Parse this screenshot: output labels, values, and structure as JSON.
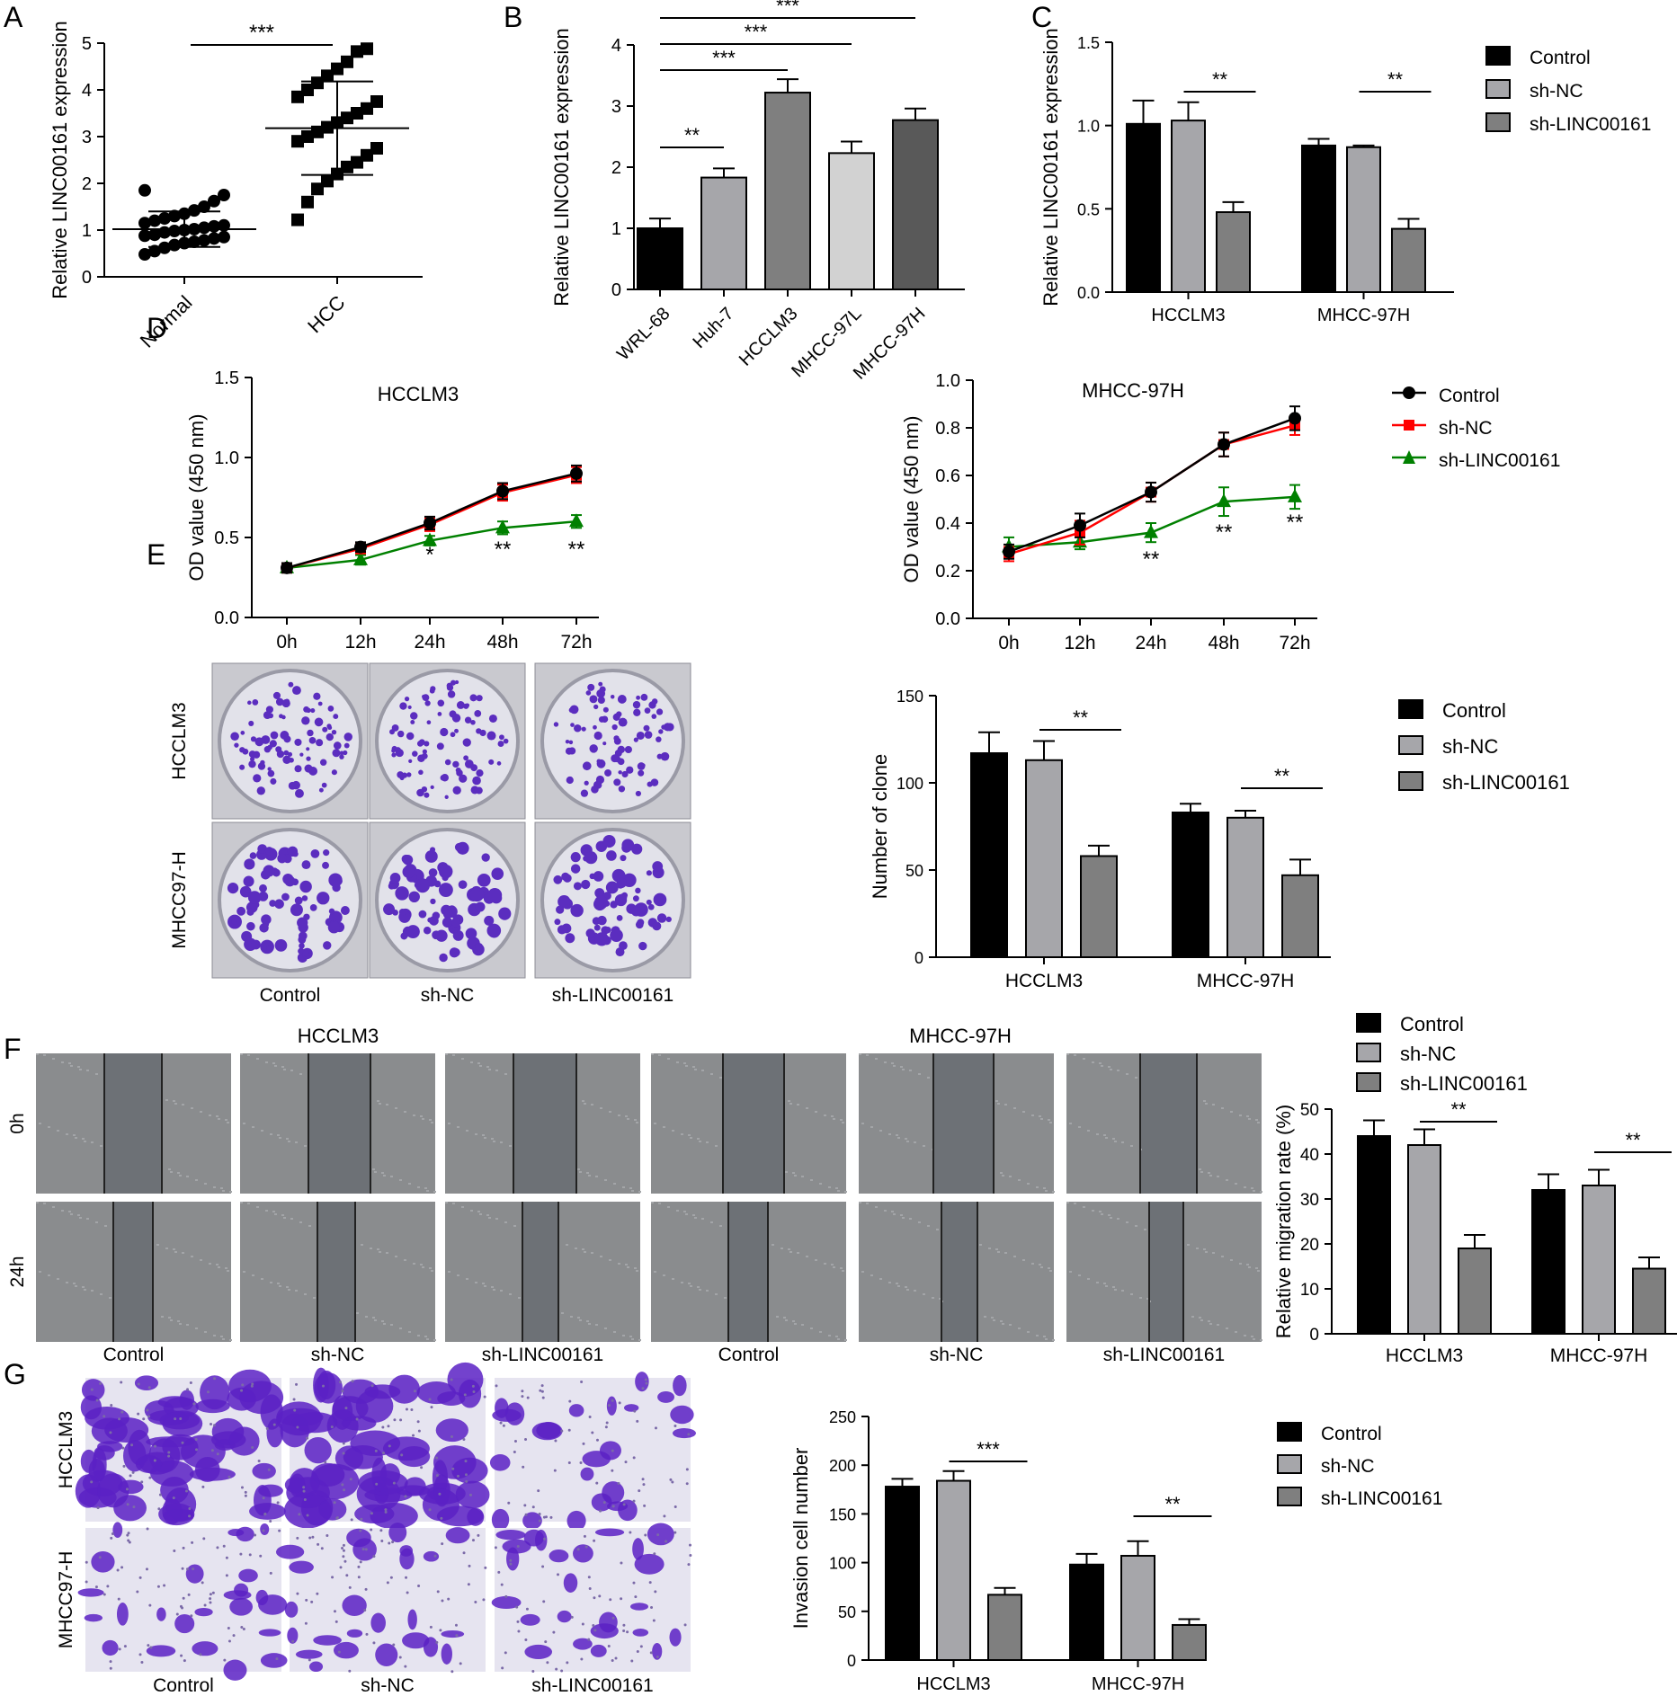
{
  "panel_labels": [
    "A",
    "B",
    "C",
    "D",
    "E",
    "F",
    "G"
  ],
  "colors": {
    "black": "#000000",
    "light_gray": "#a6a6aa",
    "mid_gray": "#7f7f7f",
    "lighter_gray": "#d2d2d2",
    "dark_gray": "#595959",
    "red": "#ff0000",
    "green": "#008000",
    "crystal_violet": "#5b2dbf"
  },
  "legend_groups": [
    "Control",
    "sh-NC",
    "sh-LINC00161"
  ],
  "chart_data": [
    {
      "id": "A",
      "type": "scatter",
      "categories": [
        "Normal",
        "HCC"
      ],
      "ylabel": "Relative LINC00161 expression",
      "ylim": [
        0,
        5
      ],
      "yticks": [
        "0",
        "1",
        "2",
        "3",
        "4",
        "5"
      ],
      "series": [
        {
          "name": "Normal",
          "marker": "circle",
          "mean": 1.02,
          "sd": 0.38,
          "values": [
            0.48,
            0.55,
            0.62,
            0.68,
            0.72,
            0.75,
            0.78,
            0.82,
            0.85,
            0.88,
            0.9,
            0.95,
            0.98,
            1.0,
            1.02,
            1.05,
            1.08,
            1.1,
            1.15,
            1.2,
            1.25,
            1.3,
            1.35,
            1.42,
            1.5,
            1.62,
            1.75,
            1.85
          ]
        },
        {
          "name": "HCC",
          "marker": "square",
          "mean": 3.18,
          "sd": 1.0,
          "values": [
            1.22,
            1.6,
            1.88,
            2.05,
            2.2,
            2.35,
            2.45,
            2.6,
            2.75,
            2.9,
            3.0,
            3.1,
            3.2,
            3.3,
            3.4,
            3.5,
            3.6,
            3.75,
            3.85,
            4.0,
            4.15,
            4.3,
            4.45,
            4.6,
            4.82,
            4.88
          ]
        }
      ],
      "significance": [
        {
          "between": [
            "Normal",
            "HCC"
          ],
          "label": "***"
        }
      ]
    },
    {
      "id": "B",
      "type": "bar",
      "categories": [
        "WRL-68",
        "Huh-7",
        "HCCLM3",
        "MHCC-97L",
        "MHCC-97H"
      ],
      "values": [
        1.0,
        1.83,
        3.22,
        2.23,
        2.77
      ],
      "errors": [
        0.16,
        0.15,
        0.22,
        0.19,
        0.19
      ],
      "ylabel": "Relative LINC00161 expression",
      "ylim": [
        0,
        4
      ],
      "yticks": [
        "0",
        "1",
        "2",
        "3",
        "4"
      ],
      "significance": [
        {
          "between": [
            "WRL-68",
            "Huh-7"
          ],
          "label": "**"
        },
        {
          "between": [
            "WRL-68",
            "HCCLM3"
          ],
          "label": "***"
        },
        {
          "between": [
            "WRL-68",
            "MHCC-97L"
          ],
          "label": "***"
        },
        {
          "between": [
            "WRL-68",
            "MHCC-97H"
          ],
          "label": "***"
        }
      ]
    },
    {
      "id": "C",
      "type": "bar",
      "categories": [
        "HCCLM3",
        "MHCC-97H"
      ],
      "ylabel": "Relative LINC00161 expression",
      "ylim": [
        0,
        1.5
      ],
      "yticks": [
        "0.0",
        "0.5",
        "1.0",
        "1.5"
      ],
      "series": [
        {
          "name": "Control",
          "values": [
            1.01,
            0.88
          ],
          "errors": [
            0.14,
            0.04
          ]
        },
        {
          "name": "sh-NC",
          "values": [
            1.03,
            0.87
          ],
          "errors": [
            0.11,
            0.01
          ]
        },
        {
          "name": "sh-LINC00161",
          "values": [
            0.48,
            0.38
          ],
          "errors": [
            0.06,
            0.06
          ]
        }
      ],
      "significance": [
        {
          "group": "HCCLM3",
          "label": "**"
        },
        {
          "group": "MHCC-97H",
          "label": "**"
        }
      ],
      "legend": "right"
    },
    {
      "id": "D1",
      "type": "line",
      "title": "HCCLM3",
      "x": [
        "0h",
        "12h",
        "24h",
        "48h",
        "72h"
      ],
      "ylabel": "OD value (450 nm)",
      "ylim": [
        0,
        1.5
      ],
      "yticks": [
        "0.0",
        "0.5",
        "1.0",
        "1.5"
      ],
      "series": [
        {
          "name": "Control",
          "values": [
            0.31,
            0.44,
            0.59,
            0.79,
            0.9
          ],
          "errors": [
            0.03,
            0.03,
            0.04,
            0.05,
            0.05
          ]
        },
        {
          "name": "sh-NC",
          "values": [
            0.31,
            0.43,
            0.58,
            0.78,
            0.89
          ],
          "errors": [
            0.03,
            0.03,
            0.04,
            0.05,
            0.05
          ]
        },
        {
          "name": "sh-LINC00161",
          "values": [
            0.31,
            0.36,
            0.48,
            0.56,
            0.6
          ],
          "errors": [
            0.03,
            0.03,
            0.03,
            0.04,
            0.04
          ]
        }
      ],
      "annotations": [
        {
          "x": "24h",
          "label": "*"
        },
        {
          "x": "48h",
          "label": "**"
        },
        {
          "x": "72h",
          "label": "**"
        }
      ]
    },
    {
      "id": "D2",
      "type": "line",
      "title": "MHCC-97H",
      "x": [
        "0h",
        "12h",
        "24h",
        "48h",
        "72h"
      ],
      "ylabel": "OD value (450 nm)",
      "ylim": [
        0,
        1.0
      ],
      "yticks": [
        "0.0",
        "0.2",
        "0.4",
        "0.6",
        "0.8",
        "1.0"
      ],
      "series": [
        {
          "name": "Control",
          "values": [
            0.28,
            0.39,
            0.53,
            0.73,
            0.84
          ],
          "errors": [
            0.03,
            0.05,
            0.04,
            0.05,
            0.05
          ]
        },
        {
          "name": "sh-NC",
          "values": [
            0.27,
            0.36,
            0.53,
            0.73,
            0.81
          ],
          "errors": [
            0.03,
            0.05,
            0.04,
            0.05,
            0.04
          ]
        },
        {
          "name": "sh-LINC00161",
          "values": [
            0.3,
            0.32,
            0.36,
            0.49,
            0.51
          ],
          "errors": [
            0.04,
            0.03,
            0.04,
            0.06,
            0.05
          ]
        }
      ],
      "annotations": [
        {
          "x": "24h",
          "label": "**"
        },
        {
          "x": "48h",
          "label": "**"
        },
        {
          "x": "72h",
          "label": "**"
        }
      ],
      "legend": "right"
    },
    {
      "id": "E",
      "type": "bar",
      "categories": [
        "HCCLM3",
        "MHCC-97H"
      ],
      "ylabel": "Number of clone",
      "ylim": [
        0,
        150
      ],
      "yticks": [
        "0",
        "50",
        "100",
        "150"
      ],
      "series": [
        {
          "name": "Control",
          "values": [
            117,
            83
          ],
          "errors": [
            12,
            5
          ]
        },
        {
          "name": "sh-NC",
          "values": [
            113,
            80
          ],
          "errors": [
            11,
            4
          ]
        },
        {
          "name": "sh-LINC00161",
          "values": [
            58,
            47
          ],
          "errors": [
            6,
            9
          ]
        }
      ],
      "significance": [
        {
          "group": "HCCLM3",
          "label": "**"
        },
        {
          "group": "MHCC-97H",
          "label": "**"
        }
      ],
      "legend": "right"
    },
    {
      "id": "F",
      "type": "bar",
      "categories": [
        "HCCLM3",
        "MHCC-97H"
      ],
      "ylabel": "Relative migration rate (%)",
      "ylim": [
        0,
        50
      ],
      "yticks": [
        "0",
        "10",
        "20",
        "30",
        "40",
        "50"
      ],
      "series": [
        {
          "name": "Control",
          "values": [
            44,
            32
          ],
          "errors": [
            3.5,
            3.5
          ]
        },
        {
          "name": "sh-NC",
          "values": [
            42,
            33
          ],
          "errors": [
            3.5,
            3.5
          ]
        },
        {
          "name": "sh-LINC00161",
          "values": [
            19,
            14.5
          ],
          "errors": [
            3,
            2.5
          ]
        }
      ],
      "significance": [
        {
          "group": "HCCLM3",
          "label": "**"
        },
        {
          "group": "MHCC-97H",
          "label": "**"
        }
      ],
      "legend": "top"
    },
    {
      "id": "G",
      "type": "bar",
      "categories": [
        "HCCLM3",
        "MHCC-97H"
      ],
      "ylabel": "Invasion cell number",
      "ylim": [
        0,
        250
      ],
      "yticks": [
        "0",
        "50",
        "100",
        "150",
        "200",
        "250"
      ],
      "series": [
        {
          "name": "Control",
          "values": [
            178,
            98
          ],
          "errors": [
            8,
            11
          ]
        },
        {
          "name": "sh-NC",
          "values": [
            184,
            107
          ],
          "errors": [
            10,
            15
          ]
        },
        {
          "name": "sh-LINC00161",
          "values": [
            67,
            36
          ],
          "errors": [
            7,
            6
          ]
        }
      ],
      "significance": [
        {
          "group": "HCCLM3",
          "label": "***"
        },
        {
          "group": "MHCC-97H",
          "label": "**"
        }
      ],
      "legend": "right"
    }
  ],
  "images": {
    "E": {
      "rows": [
        "HCCLM3",
        "MHCC97-H"
      ],
      "cols": [
        "Control",
        "sh-NC",
        "sh-LINC00161"
      ]
    },
    "F": {
      "groups": [
        "HCCLM3",
        "MHCC-97H"
      ],
      "rows": [
        "0h",
        "24h"
      ],
      "cols": [
        "Control",
        "sh-NC",
        "sh-LINC00161",
        "Control",
        "sh-NC",
        "sh-LINC00161"
      ]
    },
    "G": {
      "rows": [
        "HCCLM3",
        "MHCC97-H"
      ],
      "cols": [
        "Control",
        "sh-NC",
        "sh-LINC00161"
      ]
    }
  }
}
